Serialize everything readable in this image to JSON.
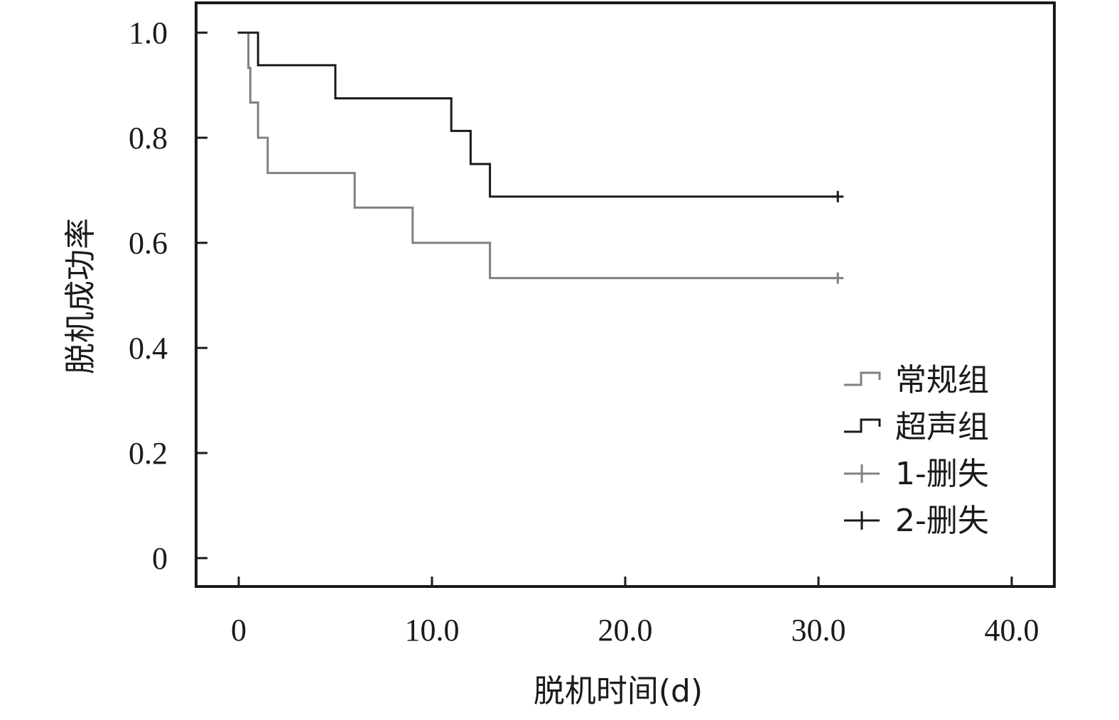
{
  "chart_data": {
    "type": "line",
    "subtype": "kaplan-meier-step",
    "xlabel": "脱机时间(d)",
    "ylabel": "脱机成功率",
    "xlim": [
      0,
      40
    ],
    "ylim": [
      0,
      1.0
    ],
    "x_ticks": [
      "0",
      "10.0",
      "20.0",
      "30.0",
      "40.0"
    ],
    "y_ticks": [
      "0",
      "0.2",
      "0.4",
      "0.6",
      "0.8",
      "1.0"
    ],
    "grid": false,
    "legend_position": "right",
    "series": [
      {
        "name": "常规组",
        "color": "#808080",
        "points": [
          [
            0,
            1.0
          ],
          [
            0.5,
            1.0
          ],
          [
            0.5,
            0.933
          ],
          [
            0.6,
            0.933
          ],
          [
            0.6,
            0.867
          ],
          [
            1.0,
            0.867
          ],
          [
            1.0,
            0.8
          ],
          [
            1.5,
            0.8
          ],
          [
            1.5,
            0.733
          ],
          [
            6.0,
            0.733
          ],
          [
            6.0,
            0.667
          ],
          [
            9.0,
            0.667
          ],
          [
            9.0,
            0.6
          ],
          [
            13.0,
            0.6
          ],
          [
            13.0,
            0.533
          ],
          [
            31.0,
            0.533
          ]
        ]
      },
      {
        "name": "超声组",
        "color": "#1a1a1a",
        "points": [
          [
            0,
            1.0
          ],
          [
            1.0,
            1.0
          ],
          [
            1.0,
            0.938
          ],
          [
            5.0,
            0.938
          ],
          [
            5.0,
            0.875
          ],
          [
            11.0,
            0.875
          ],
          [
            11.0,
            0.813
          ],
          [
            12.0,
            0.813
          ],
          [
            12.0,
            0.75
          ],
          [
            13.0,
            0.75
          ],
          [
            13.0,
            0.688
          ],
          [
            31.0,
            0.688
          ]
        ]
      }
    ],
    "censored": [
      {
        "name": "1-删失",
        "color": "#808080",
        "points": [
          [
            31.0,
            0.533
          ]
        ]
      },
      {
        "name": "2-删失",
        "color": "#1a1a1a",
        "points": [
          [
            31.0,
            0.688
          ]
        ]
      }
    ],
    "legend": [
      {
        "label": "常规组",
        "symbol": "step",
        "color": "#808080"
      },
      {
        "label": "超声组",
        "symbol": "step",
        "color": "#1a1a1a"
      },
      {
        "label": "1-删失",
        "symbol": "plus",
        "color": "#808080"
      },
      {
        "label": "2-删失",
        "symbol": "plus",
        "color": "#1a1a1a"
      }
    ]
  }
}
